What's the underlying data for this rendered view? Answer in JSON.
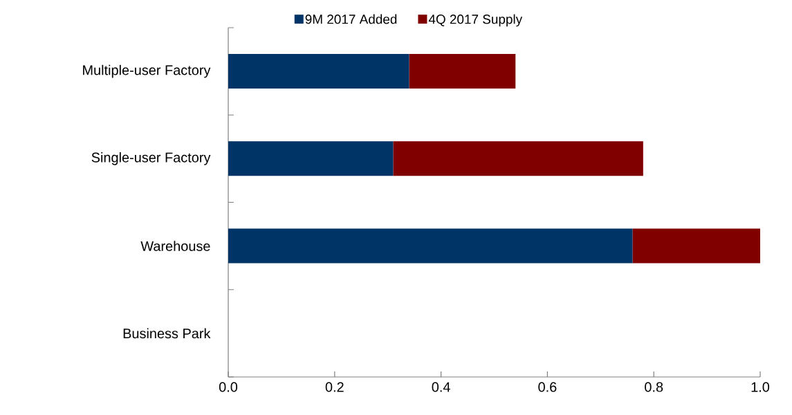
{
  "chart_data": {
    "type": "bar",
    "orientation": "horizontal",
    "stacked": true,
    "categories": [
      "Multiple-user Factory",
      "Single-user Factory",
      "Warehouse",
      "Business Park"
    ],
    "series": [
      {
        "name": "9M 2017 Added",
        "color": "#003366",
        "values": [
          0.34,
          0.31,
          0.76,
          0
        ]
      },
      {
        "name": "4Q 2017 Supply",
        "color": "#800000",
        "values": [
          0.2,
          0.47,
          0.24,
          0
        ]
      }
    ],
    "xlim": [
      0,
      1.0
    ],
    "xticks": [
      {
        "value": 0,
        "label": "0.0"
      },
      {
        "value": 0.2,
        "label": "0.2"
      },
      {
        "value": 0.4,
        "label": "0.4"
      },
      {
        "value": 0.6,
        "label": "0.6"
      },
      {
        "value": 0.8,
        "label": "0.8"
      },
      {
        "value": 1.0,
        "label": "1.0"
      }
    ],
    "grid": false,
    "legend": "top"
  }
}
